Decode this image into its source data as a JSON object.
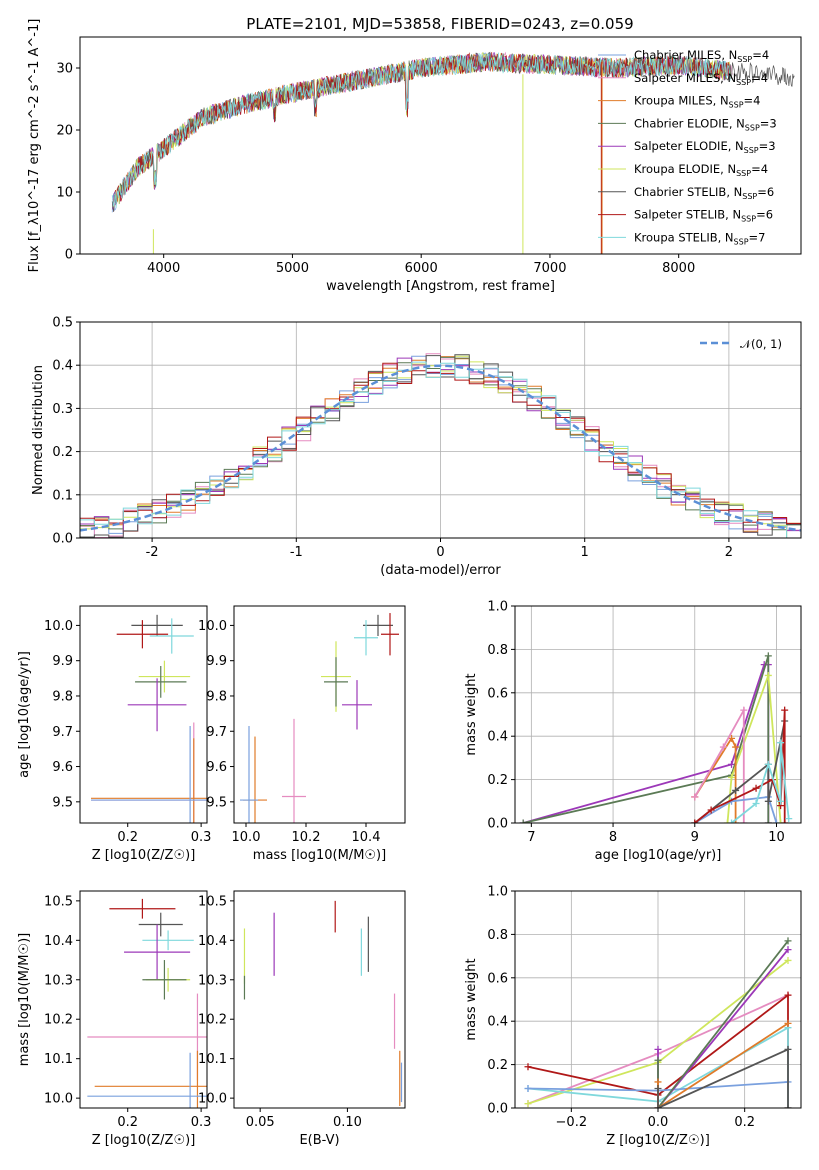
{
  "figure": {
    "title": "PLATE=2101, MJD=53858, FIBERID=0243, z=0.059"
  },
  "chart_data": [
    {
      "id": "spectrum",
      "type": "line",
      "xlabel": "wavelength [Angstrom, rest frame]",
      "ylabel": "Flux [f_λ10^-17 erg cm^-2 s^-1 A^-1]",
      "xlim": [
        3350,
        8950
      ],
      "ylim": [
        0,
        35
      ],
      "xticks": [
        4000,
        5000,
        6000,
        7000,
        8000
      ],
      "yticks": [
        0,
        10,
        20,
        30
      ],
      "legend_position": "right",
      "continuum_knots": {
        "x": [
          3600,
          3800,
          4000,
          4300,
          4600,
          5000,
          5500,
          6000,
          6500,
          7000,
          7500,
          8000,
          8400,
          8900
        ],
        "y": [
          8,
          14,
          17,
          22,
          24,
          26,
          28,
          30,
          31,
          30.5,
          30,
          30.5,
          29.5,
          28.5
        ]
      },
      "series": [
        {
          "name": "Chabrier MILES",
          "nssp": "4",
          "color": "#7aa0de"
        },
        {
          "name": "Salpeter MILES",
          "nssp": "4",
          "color": "#e58cc0"
        },
        {
          "name": "Kroupa MILES",
          "nssp": "4",
          "color": "#e07b2a"
        },
        {
          "name": "Chabrier ELODIE",
          "nssp": "3",
          "color": "#5b7a55"
        },
        {
          "name": "Salpeter ELODIE",
          "nssp": "3",
          "color": "#9c38b8"
        },
        {
          "name": "Kroupa ELODIE",
          "nssp": "4",
          "color": "#cfe65c"
        },
        {
          "name": "Chabrier STELIB",
          "nssp": "6",
          "color": "#555555"
        },
        {
          "name": "Salpeter STELIB",
          "nssp": "6",
          "color": "#b01818"
        },
        {
          "name": "Kroupa STELIB",
          "nssp": "7",
          "color": "#7fd8dc"
        }
      ]
    },
    {
      "id": "residuals",
      "type": "line",
      "xlabel": "(data-model)/error",
      "ylabel": "Normed distribution",
      "xlim": [
        -2.5,
        2.5
      ],
      "ylim": [
        0,
        0.5
      ],
      "xticks": [
        -2,
        -1,
        0,
        1,
        2
      ],
      "ytick_labels": [
        "0.0",
        "0.1",
        "0.2",
        "0.3",
        "0.4",
        "0.5"
      ],
      "legend": "𝒩(0, 1)",
      "legend_position": "top-right",
      "gaussian_color": "#5b8fd6",
      "grid": true
    },
    {
      "id": "age_vs_Z",
      "type": "scatter",
      "xlabel": "Z [log10(Z/Z☉)]",
      "ylabel": "age  [log10(age/yr)]",
      "xlim": [
        0.135,
        0.308
      ],
      "ylim": [
        9.44,
        10.055
      ],
      "xticks": [
        0.2,
        0.3
      ],
      "ytick_labels": [
        "9.5",
        "9.6",
        "9.7",
        "9.8",
        "9.9",
        "10.0"
      ],
      "ytick_values": [
        9.5,
        9.6,
        9.7,
        9.8,
        9.9,
        10.0
      ],
      "points": [
        {
          "x": 0.24,
          "xerr": 0.035,
          "y": 10.0,
          "yerr": 0.03,
          "color": "#555555"
        },
        {
          "x": 0.22,
          "xerr": 0.035,
          "y": 9.975,
          "yerr": 0.04,
          "color": "#b01818"
        },
        {
          "x": 0.26,
          "xerr": 0.03,
          "y": 9.97,
          "yerr": 0.05,
          "color": "#7fd8dc"
        },
        {
          "x": 0.25,
          "xerr": 0.035,
          "y": 9.855,
          "yerr": 0.045,
          "color": "#cfe65c"
        },
        {
          "x": 0.245,
          "xerr": 0.035,
          "y": 9.84,
          "yerr": 0.045,
          "color": "#5b7a55"
        },
        {
          "x": 0.24,
          "xerr": 0.04,
          "y": 9.775,
          "yerr": 0.075,
          "color": "#9c38b8"
        },
        {
          "x": 0.29,
          "xerr": 0.14,
          "y": 9.505,
          "yerr": 0.22,
          "color": "#e58cc0"
        },
        {
          "x": 0.29,
          "xerr": 0.14,
          "y": 9.51,
          "yerr": 0.17,
          "color": "#e07b2a"
        },
        {
          "x": 0.285,
          "xerr": 0.135,
          "y": 9.505,
          "yerr": 0.21,
          "color": "#7aa0de"
        }
      ]
    },
    {
      "id": "age_vs_mass",
      "type": "scatter",
      "xlabel": "mass [log10(M/M☉)]",
      "ylabel": "",
      "xlim": [
        9.96,
        10.53
      ],
      "ylim": [
        9.44,
        10.055
      ],
      "xticks": [
        10.0,
        10.2,
        10.4
      ],
      "xtick_labels": [
        "10.0",
        "10.2",
        "10.4"
      ],
      "ytick_labels": [
        "9.5",
        "9.6",
        "9.7",
        "9.8",
        "9.9",
        "10.0"
      ],
      "ytick_values": [
        9.5,
        9.6,
        9.7,
        9.8,
        9.9,
        10.0
      ],
      "points": [
        {
          "x": 10.44,
          "xerr": 0.05,
          "y": 10.0,
          "yerr": 0.03,
          "color": "#555555"
        },
        {
          "x": 10.48,
          "xerr": 0.03,
          "y": 9.975,
          "yerr": 0.06,
          "color": "#b01818"
        },
        {
          "x": 10.4,
          "xerr": 0.04,
          "y": 9.965,
          "yerr": 0.05,
          "color": "#7fd8dc"
        },
        {
          "x": 10.3,
          "xerr": 0.05,
          "y": 9.855,
          "yerr": 0.1,
          "color": "#cfe65c"
        },
        {
          "x": 10.3,
          "xerr": 0.04,
          "y": 9.84,
          "yerr": 0.07,
          "color": "#5b7a55"
        },
        {
          "x": 10.37,
          "xerr": 0.05,
          "y": 9.775,
          "yerr": 0.07,
          "color": "#9c38b8"
        },
        {
          "x": 10.16,
          "xerr": 0.04,
          "y": 9.515,
          "yerr": 0.22,
          "color": "#e58cc0"
        },
        {
          "x": 10.03,
          "xerr": 0.04,
          "y": 9.505,
          "yerr": 0.18,
          "color": "#e07b2a"
        },
        {
          "x": 10.01,
          "xerr": 0.03,
          "y": 9.505,
          "yerr": 0.21,
          "color": "#7aa0de"
        }
      ]
    },
    {
      "id": "weight_vs_age",
      "type": "line",
      "xlabel": "age  [log10(age/yr)]",
      "ylabel": "mass weight",
      "xlim": [
        6.8,
        10.3
      ],
      "ylim": [
        0,
        1
      ],
      "xticks": [
        7,
        8,
        9,
        10
      ],
      "ytick_labels": [
        "0.0",
        "0.2",
        "0.4",
        "0.6",
        "0.8",
        "1.0"
      ],
      "ytick_values": [
        0,
        0.2,
        0.4,
        0.6,
        0.8,
        1.0
      ],
      "grid": true,
      "series": [
        {
          "color": "#9c38b8",
          "x": [
            6.9,
            9.45,
            9.85,
            9.9,
            9.9
          ],
          "y": [
            0,
            0.27,
            0.73,
            0.73,
            0.0
          ]
        },
        {
          "color": "#5b7a55",
          "x": [
            6.9,
            9.45,
            9.9,
            9.9
          ],
          "y": [
            0,
            0.22,
            0.77,
            0.0
          ]
        },
        {
          "color": "#cfe65c",
          "x": [
            9.4,
            9.45,
            9.9,
            10.05
          ],
          "y": [
            0.0,
            0.21,
            0.68,
            0.0
          ]
        },
        {
          "color": "#e07b2a",
          "x": [
            9.0,
            9.45,
            9.5,
            9.5
          ],
          "y": [
            0.12,
            0.39,
            0.35,
            0.0
          ]
        },
        {
          "color": "#e58cc0",
          "x": [
            9.0,
            9.35,
            9.6,
            9.6
          ],
          "y": [
            0.12,
            0.35,
            0.52,
            0.0
          ]
        },
        {
          "color": "#7aa0de",
          "x": [
            9.0,
            9.45,
            9.9,
            10.0
          ],
          "y": [
            0.0,
            0.1,
            0.12,
            0.0
          ]
        },
        {
          "color": "#555555",
          "x": [
            9.0,
            9.5,
            9.9,
            9.9,
            10.1
          ],
          "y": [
            0.0,
            0.15,
            0.27,
            0.1,
            0.47
          ]
        },
        {
          "color": "#b01818",
          "x": [
            9.0,
            9.2,
            9.75,
            9.95,
            10.05,
            10.1,
            10.1
          ],
          "y": [
            0.0,
            0.06,
            0.16,
            0.2,
            0.08,
            0.52,
            0.0
          ]
        },
        {
          "color": "#7fd8dc",
          "x": [
            9.45,
            9.75,
            9.9,
            10.05,
            10.05,
            10.15
          ],
          "y": [
            0.0,
            0.09,
            0.27,
            0.1,
            0.37,
            0.02
          ]
        }
      ]
    },
    {
      "id": "mass_vs_Z",
      "type": "scatter",
      "xlabel": "Z [log10(Z/Z☉)]",
      "ylabel": "mass [log10(M/M☉)]",
      "xlim": [
        0.135,
        0.308
      ],
      "ylim": [
        9.975,
        10.525
      ],
      "xticks": [
        0.2,
        0.3
      ],
      "ytick_labels": [
        "10.0",
        "10.1",
        "10.2",
        "10.3",
        "10.4",
        "10.5"
      ],
      "ytick_values": [
        10.0,
        10.1,
        10.2,
        10.3,
        10.4,
        10.5
      ],
      "points": [
        {
          "x": 0.22,
          "xerr": 0.045,
          "y": 10.48,
          "yerr": 0.025,
          "color": "#b01818"
        },
        {
          "x": 0.245,
          "xerr": 0.03,
          "y": 10.44,
          "yerr": 0.03,
          "color": "#555555"
        },
        {
          "x": 0.255,
          "xerr": 0.035,
          "y": 10.4,
          "yerr": 0.025,
          "color": "#7fd8dc"
        },
        {
          "x": 0.24,
          "xerr": 0.045,
          "y": 10.37,
          "yerr": 0.07,
          "color": "#9c38b8"
        },
        {
          "x": 0.255,
          "xerr": 0.03,
          "y": 10.3,
          "yerr": 0.03,
          "color": "#cfe65c"
        },
        {
          "x": 0.25,
          "xerr": 0.03,
          "y": 10.3,
          "yerr": 0.05,
          "color": "#5b7a55"
        },
        {
          "x": 0.295,
          "xerr": 0.15,
          "y": 10.155,
          "yerr": 0.11,
          "color": "#e58cc0"
        },
        {
          "x": 0.295,
          "xerr": 0.14,
          "y": 10.03,
          "yerr": 0.09,
          "color": "#e07b2a"
        },
        {
          "x": 0.285,
          "xerr": 0.14,
          "y": 10.005,
          "yerr": 0.11,
          "color": "#7aa0de"
        }
      ]
    },
    {
      "id": "mass_vs_ebv",
      "type": "scatter",
      "xlabel": "E(B-V)",
      "ylabel": "",
      "xlim": [
        0.035,
        0.133
      ],
      "ylim": [
        9.975,
        10.525
      ],
      "xticks": [
        0.05,
        0.1
      ],
      "xtick_labels": [
        "0.05",
        "0.10"
      ],
      "ytick_labels": [
        "10.0",
        "10.1",
        "10.2",
        "10.3",
        "10.4",
        "10.5"
      ],
      "ytick_values": [
        10.0,
        10.1,
        10.2,
        10.3,
        10.4,
        10.5
      ],
      "points": [
        {
          "x": 0.041,
          "y": 10.36,
          "yerr": 0.07,
          "color": "#cfe65c"
        },
        {
          "x": 0.041,
          "y": 10.28,
          "yerr": 0.03,
          "color": "#5b7a55"
        },
        {
          "x": 0.058,
          "y": 10.39,
          "yerr": 0.08,
          "color": "#9c38b8"
        },
        {
          "x": 0.093,
          "y": 10.46,
          "yerr": 0.04,
          "color": "#b01818"
        },
        {
          "x": 0.108,
          "y": 10.37,
          "yerr": 0.06,
          "color": "#7fd8dc"
        },
        {
          "x": 0.112,
          "y": 10.39,
          "yerr": 0.07,
          "color": "#555555"
        },
        {
          "x": 0.127,
          "y": 10.195,
          "yerr": 0.07,
          "color": "#e58cc0"
        },
        {
          "x": 0.13,
          "y": 10.05,
          "yerr": 0.07,
          "color": "#e07b2a"
        },
        {
          "x": 0.131,
          "y": 10.04,
          "yerr": 0.05,
          "color": "#7aa0de"
        }
      ]
    },
    {
      "id": "weight_vs_Z",
      "type": "line",
      "xlabel": "Z [log10(Z/Z☉)]",
      "ylabel": "mass weight",
      "xlim": [
        -0.33,
        0.33
      ],
      "ylim": [
        0,
        1
      ],
      "xticks": [
        -0.2,
        0.0,
        0.2
      ],
      "xtick_labels": [
        "−0.2",
        "0.0",
        "0.2"
      ],
      "ytick_labels": [
        "0.0",
        "0.2",
        "0.4",
        "0.6",
        "0.8",
        "1.0"
      ],
      "ytick_values": [
        0,
        0.2,
        0.4,
        0.6,
        0.8,
        1.0
      ],
      "grid": true,
      "series": [
        {
          "color": "#e58cc0",
          "x": [
            -0.3,
            0.0,
            0.3
          ],
          "y": [
            0.02,
            0.25,
            0.52
          ]
        },
        {
          "color": "#cfe65c",
          "x": [
            -0.3,
            0.0,
            0.3
          ],
          "y": [
            0.02,
            0.21,
            0.68
          ]
        },
        {
          "color": "#b01818",
          "x": [
            -0.3,
            0.0,
            0.3,
            0.3
          ],
          "y": [
            0.19,
            0.06,
            0.52,
            0.0
          ]
        },
        {
          "color": "#7fd8dc",
          "x": [
            -0.3,
            0.0,
            0.3,
            0.3
          ],
          "y": [
            0.09,
            0.03,
            0.37,
            0.0
          ]
        },
        {
          "color": "#7aa0de",
          "x": [
            -0.3,
            0.0,
            0.3
          ],
          "y": [
            0.09,
            0.08,
            0.12
          ]
        },
        {
          "color": "#9c38b8",
          "x": [
            0.0,
            0.0,
            0.3
          ],
          "y": [
            0.27,
            0.0,
            0.73
          ]
        },
        {
          "color": "#5b7a55",
          "x": [
            0.0,
            0.0,
            0.3
          ],
          "y": [
            0.22,
            0.0,
            0.77
          ]
        },
        {
          "color": "#e07b2a",
          "x": [
            0.0,
            0.0,
            0.3
          ],
          "y": [
            0.12,
            0.0,
            0.39
          ]
        },
        {
          "color": "#555555",
          "x": [
            0.0,
            0.0,
            0.3,
            0.3
          ],
          "y": [
            0.09,
            0.0,
            0.27,
            0.0
          ]
        }
      ]
    }
  ]
}
